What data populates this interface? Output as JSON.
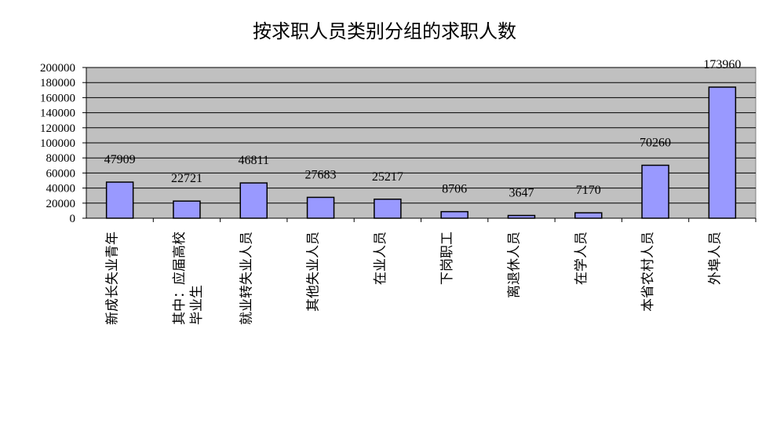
{
  "chart_data": {
    "type": "bar",
    "title": "按求职人员类别分组的求职人数",
    "categories": [
      "新成长失业青年",
      "其中：应届高校毕业生",
      "就业转失业人员",
      "其他失业人员",
      "在业人员",
      "下岗职工",
      "离退休人员",
      "在学人员",
      "本省农村人员",
      "外埠人员"
    ],
    "values": [
      47909,
      22721,
      46811,
      27683,
      25217,
      8706,
      3647,
      7170,
      70260,
      173960
    ],
    "color": "#9999ff",
    "ylim": [
      0,
      200000
    ],
    "yticks": [
      0,
      20000,
      40000,
      60000,
      80000,
      100000,
      120000,
      140000,
      160000,
      180000,
      200000
    ],
    "grid": true
  }
}
